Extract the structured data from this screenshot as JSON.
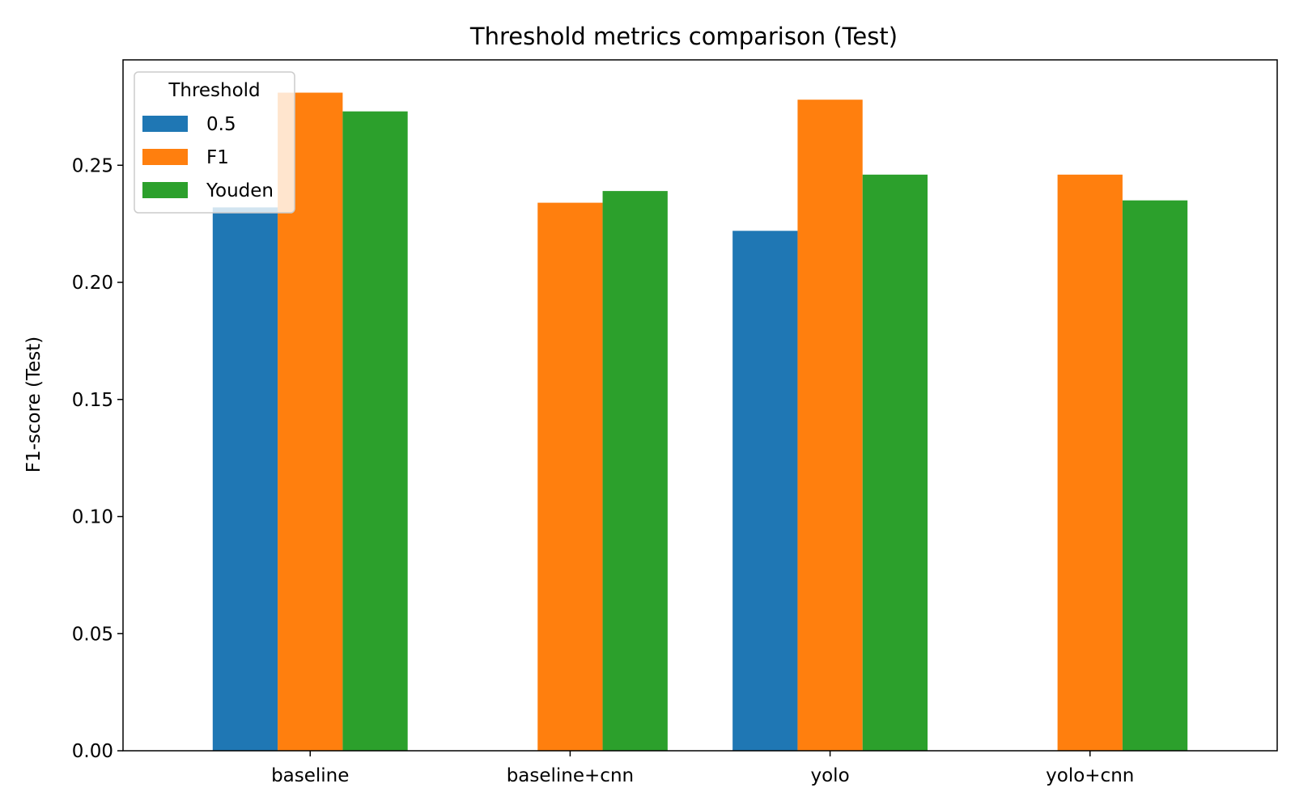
{
  "chart_data": {
    "type": "bar",
    "title": "Threshold metrics comparison (Test)",
    "xlabel": "",
    "ylabel": "F1-score (Test)",
    "categories": [
      "baseline",
      "baseline+cnn",
      "yolo",
      "yolo+cnn"
    ],
    "series": [
      {
        "name": "0.5",
        "color": "#1f77b4",
        "values": [
          0.232,
          0,
          0.222,
          0
        ]
      },
      {
        "name": "F1",
        "color": "#ff7f0e",
        "values": [
          0.281,
          0.234,
          0.278,
          0.246
        ]
      },
      {
        "name": "Youden",
        "color": "#2ca02c",
        "values": [
          0.273,
          0.239,
          0.246,
          0.235
        ]
      }
    ],
    "ylim": [
      0,
      0.295
    ],
    "yticks": [
      "0.00",
      "0.05",
      "0.10",
      "0.15",
      "0.20",
      "0.25"
    ],
    "grid": false,
    "legend": {
      "title": "Threshold",
      "placement": "top-left"
    }
  }
}
